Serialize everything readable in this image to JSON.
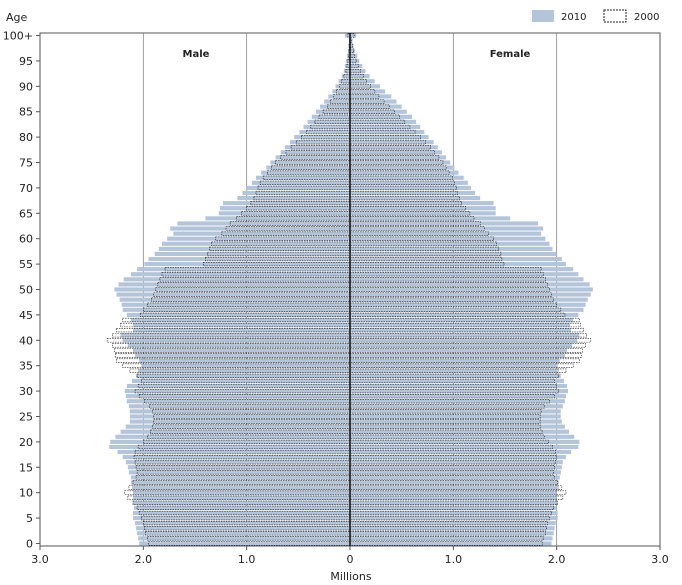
{
  "chart_data": {
    "type": "population-pyramid",
    "ylabel": "Age",
    "xlabel": "Millions",
    "male_label": "Male",
    "female_label": "Female",
    "xlim": [
      -3.0,
      3.0
    ],
    "x_ticks": [
      {
        "value": -3.0,
        "label": "3.0"
      },
      {
        "value": -2.0,
        "label": "2.0"
      },
      {
        "value": -1.0,
        "label": "1.0"
      },
      {
        "value": 0,
        "label": "0"
      },
      {
        "value": 1.0,
        "label": "1.0"
      },
      {
        "value": 2.0,
        "label": "2.0"
      },
      {
        "value": 3.0,
        "label": "3.0"
      }
    ],
    "y_ticks": [
      {
        "value": 0,
        "label": "0"
      },
      {
        "value": 5,
        "label": "5"
      },
      {
        "value": 10,
        "label": "10"
      },
      {
        "value": 15,
        "label": "15"
      },
      {
        "value": 20,
        "label": "20"
      },
      {
        "value": 25,
        "label": "25"
      },
      {
        "value": 30,
        "label": "30"
      },
      {
        "value": 35,
        "label": "35"
      },
      {
        "value": 40,
        "label": "40"
      },
      {
        "value": 45,
        "label": "45"
      },
      {
        "value": 50,
        "label": "50"
      },
      {
        "value": 55,
        "label": "55"
      },
      {
        "value": 60,
        "label": "60"
      },
      {
        "value": 65,
        "label": "65"
      },
      {
        "value": 70,
        "label": "70"
      },
      {
        "value": 75,
        "label": "75"
      },
      {
        "value": 80,
        "label": "80"
      },
      {
        "value": 85,
        "label": "85"
      },
      {
        "value": 90,
        "label": "90"
      },
      {
        "value": 95,
        "label": "95"
      },
      {
        "value": 100,
        "label": "100+"
      }
    ],
    "grid": "vertical",
    "legend_position": "top-right",
    "colors": {
      "fill_2010": "#b4c4d9",
      "outline_2000": "#222222",
      "grid": "#888888"
    },
    "series": [
      {
        "name": "2010",
        "style": "filled",
        "male": [
          2.04,
          2.05,
          2.06,
          2.07,
          2.08,
          2.1,
          2.1,
          2.09,
          2.1,
          2.1,
          2.1,
          2.11,
          2.12,
          2.12,
          2.14,
          2.15,
          2.17,
          2.2,
          2.25,
          2.33,
          2.32,
          2.27,
          2.22,
          2.17,
          2.13,
          2.13,
          2.13,
          2.14,
          2.16,
          2.17,
          2.18,
          2.16,
          2.11,
          2.07,
          2.05,
          2.02,
          2.04,
          2.08,
          2.1,
          2.15,
          2.2,
          2.22,
          2.1,
          2.1,
          2.12,
          2.16,
          2.2,
          2.21,
          2.23,
          2.26,
          2.28,
          2.24,
          2.19,
          2.12,
          2.06,
          1.99,
          1.95,
          1.89,
          1.85,
          1.82,
          1.77,
          1.71,
          1.74,
          1.67,
          1.4,
          1.27,
          1.26,
          1.23,
          1.09,
          1.04,
          1.0,
          0.95,
          0.91,
          0.86,
          0.81,
          0.77,
          0.72,
          0.67,
          0.63,
          0.58,
          0.54,
          0.49,
          0.45,
          0.41,
          0.37,
          0.33,
          0.29,
          0.25,
          0.21,
          0.17,
          0.14,
          0.11,
          0.08,
          0.06,
          0.05,
          0.04,
          0.03,
          0.02,
          0.015,
          0.01,
          0.05
        ],
        "female": [
          1.95,
          1.96,
          1.97,
          1.98,
          1.99,
          2.01,
          2.01,
          2.0,
          2.0,
          2.0,
          2.0,
          2.02,
          2.02,
          2.03,
          2.04,
          2.05,
          2.06,
          2.09,
          2.14,
          2.21,
          2.22,
          2.17,
          2.12,
          2.08,
          2.05,
          2.04,
          2.04,
          2.06,
          2.08,
          2.09,
          2.11,
          2.1,
          2.07,
          2.04,
          2.02,
          2.01,
          2.03,
          2.08,
          2.1,
          2.15,
          2.2,
          2.22,
          2.14,
          2.13,
          2.16,
          2.21,
          2.26,
          2.28,
          2.3,
          2.33,
          2.35,
          2.32,
          2.26,
          2.21,
          2.16,
          2.09,
          2.05,
          2.0,
          1.96,
          1.93,
          1.89,
          1.85,
          1.87,
          1.82,
          1.55,
          1.41,
          1.41,
          1.39,
          1.26,
          1.21,
          1.17,
          1.14,
          1.1,
          1.05,
          1.01,
          0.97,
          0.93,
          0.89,
          0.85,
          0.81,
          0.76,
          0.72,
          0.68,
          0.64,
          0.6,
          0.55,
          0.5,
          0.45,
          0.4,
          0.34,
          0.29,
          0.24,
          0.19,
          0.15,
          0.12,
          0.09,
          0.07,
          0.05,
          0.035,
          0.025,
          0.06
        ]
      },
      {
        "name": "2000",
        "style": "outline",
        "male": [
          1.95,
          1.96,
          1.98,
          1.99,
          2.0,
          2.02,
          2.04,
          2.06,
          2.1,
          2.15,
          2.18,
          2.14,
          2.1,
          2.07,
          2.06,
          2.07,
          2.08,
          2.09,
          2.08,
          2.05,
          2.0,
          1.96,
          1.93,
          1.91,
          1.9,
          1.9,
          1.91,
          1.94,
          1.99,
          2.04,
          2.08,
          2.05,
          2.02,
          2.06,
          2.13,
          2.2,
          2.26,
          2.27,
          2.28,
          2.3,
          2.35,
          2.3,
          2.26,
          2.22,
          2.2,
          2.03,
          2.0,
          1.96,
          1.92,
          1.9,
          1.88,
          1.86,
          1.84,
          1.82,
          1.79,
          1.42,
          1.4,
          1.38,
          1.36,
          1.34,
          1.3,
          1.24,
          1.2,
          1.16,
          1.1,
          1.05,
          1.0,
          0.96,
          0.93,
          0.91,
          0.89,
          0.87,
          0.84,
          0.8,
          0.76,
          0.72,
          0.67,
          0.62,
          0.57,
          0.52,
          0.47,
          0.42,
          0.38,
          0.34,
          0.3,
          0.26,
          0.22,
          0.19,
          0.16,
          0.13,
          0.1,
          0.08,
          0.06,
          0.04,
          0.03,
          0.02,
          0.015,
          0.01,
          0.008,
          0.005,
          0.02
        ],
        "female": [
          1.86,
          1.87,
          1.89,
          1.9,
          1.91,
          1.93,
          1.95,
          1.97,
          2.01,
          2.06,
          2.09,
          2.05,
          2.01,
          1.98,
          1.97,
          1.98,
          1.99,
          2.0,
          1.99,
          1.96,
          1.92,
          1.88,
          1.86,
          1.84,
          1.84,
          1.84,
          1.85,
          1.88,
          1.93,
          1.98,
          2.02,
          2.0,
          1.98,
          2.02,
          2.09,
          2.16,
          2.22,
          2.24,
          2.25,
          2.28,
          2.33,
          2.29,
          2.26,
          2.23,
          2.22,
          2.08,
          2.04,
          2.0,
          1.97,
          1.95,
          1.93,
          1.91,
          1.89,
          1.87,
          1.85,
          1.49,
          1.47,
          1.46,
          1.44,
          1.42,
          1.39,
          1.34,
          1.3,
          1.26,
          1.2,
          1.16,
          1.12,
          1.08,
          1.06,
          1.04,
          1.03,
          1.01,
          0.99,
          0.96,
          0.93,
          0.9,
          0.86,
          0.82,
          0.78,
          0.73,
          0.68,
          0.63,
          0.58,
          0.53,
          0.48,
          0.43,
          0.38,
          0.33,
          0.28,
          0.24,
          0.2,
          0.16,
          0.13,
          0.1,
          0.08,
          0.06,
          0.045,
          0.035,
          0.025,
          0.015,
          0.04
        ]
      }
    ]
  }
}
